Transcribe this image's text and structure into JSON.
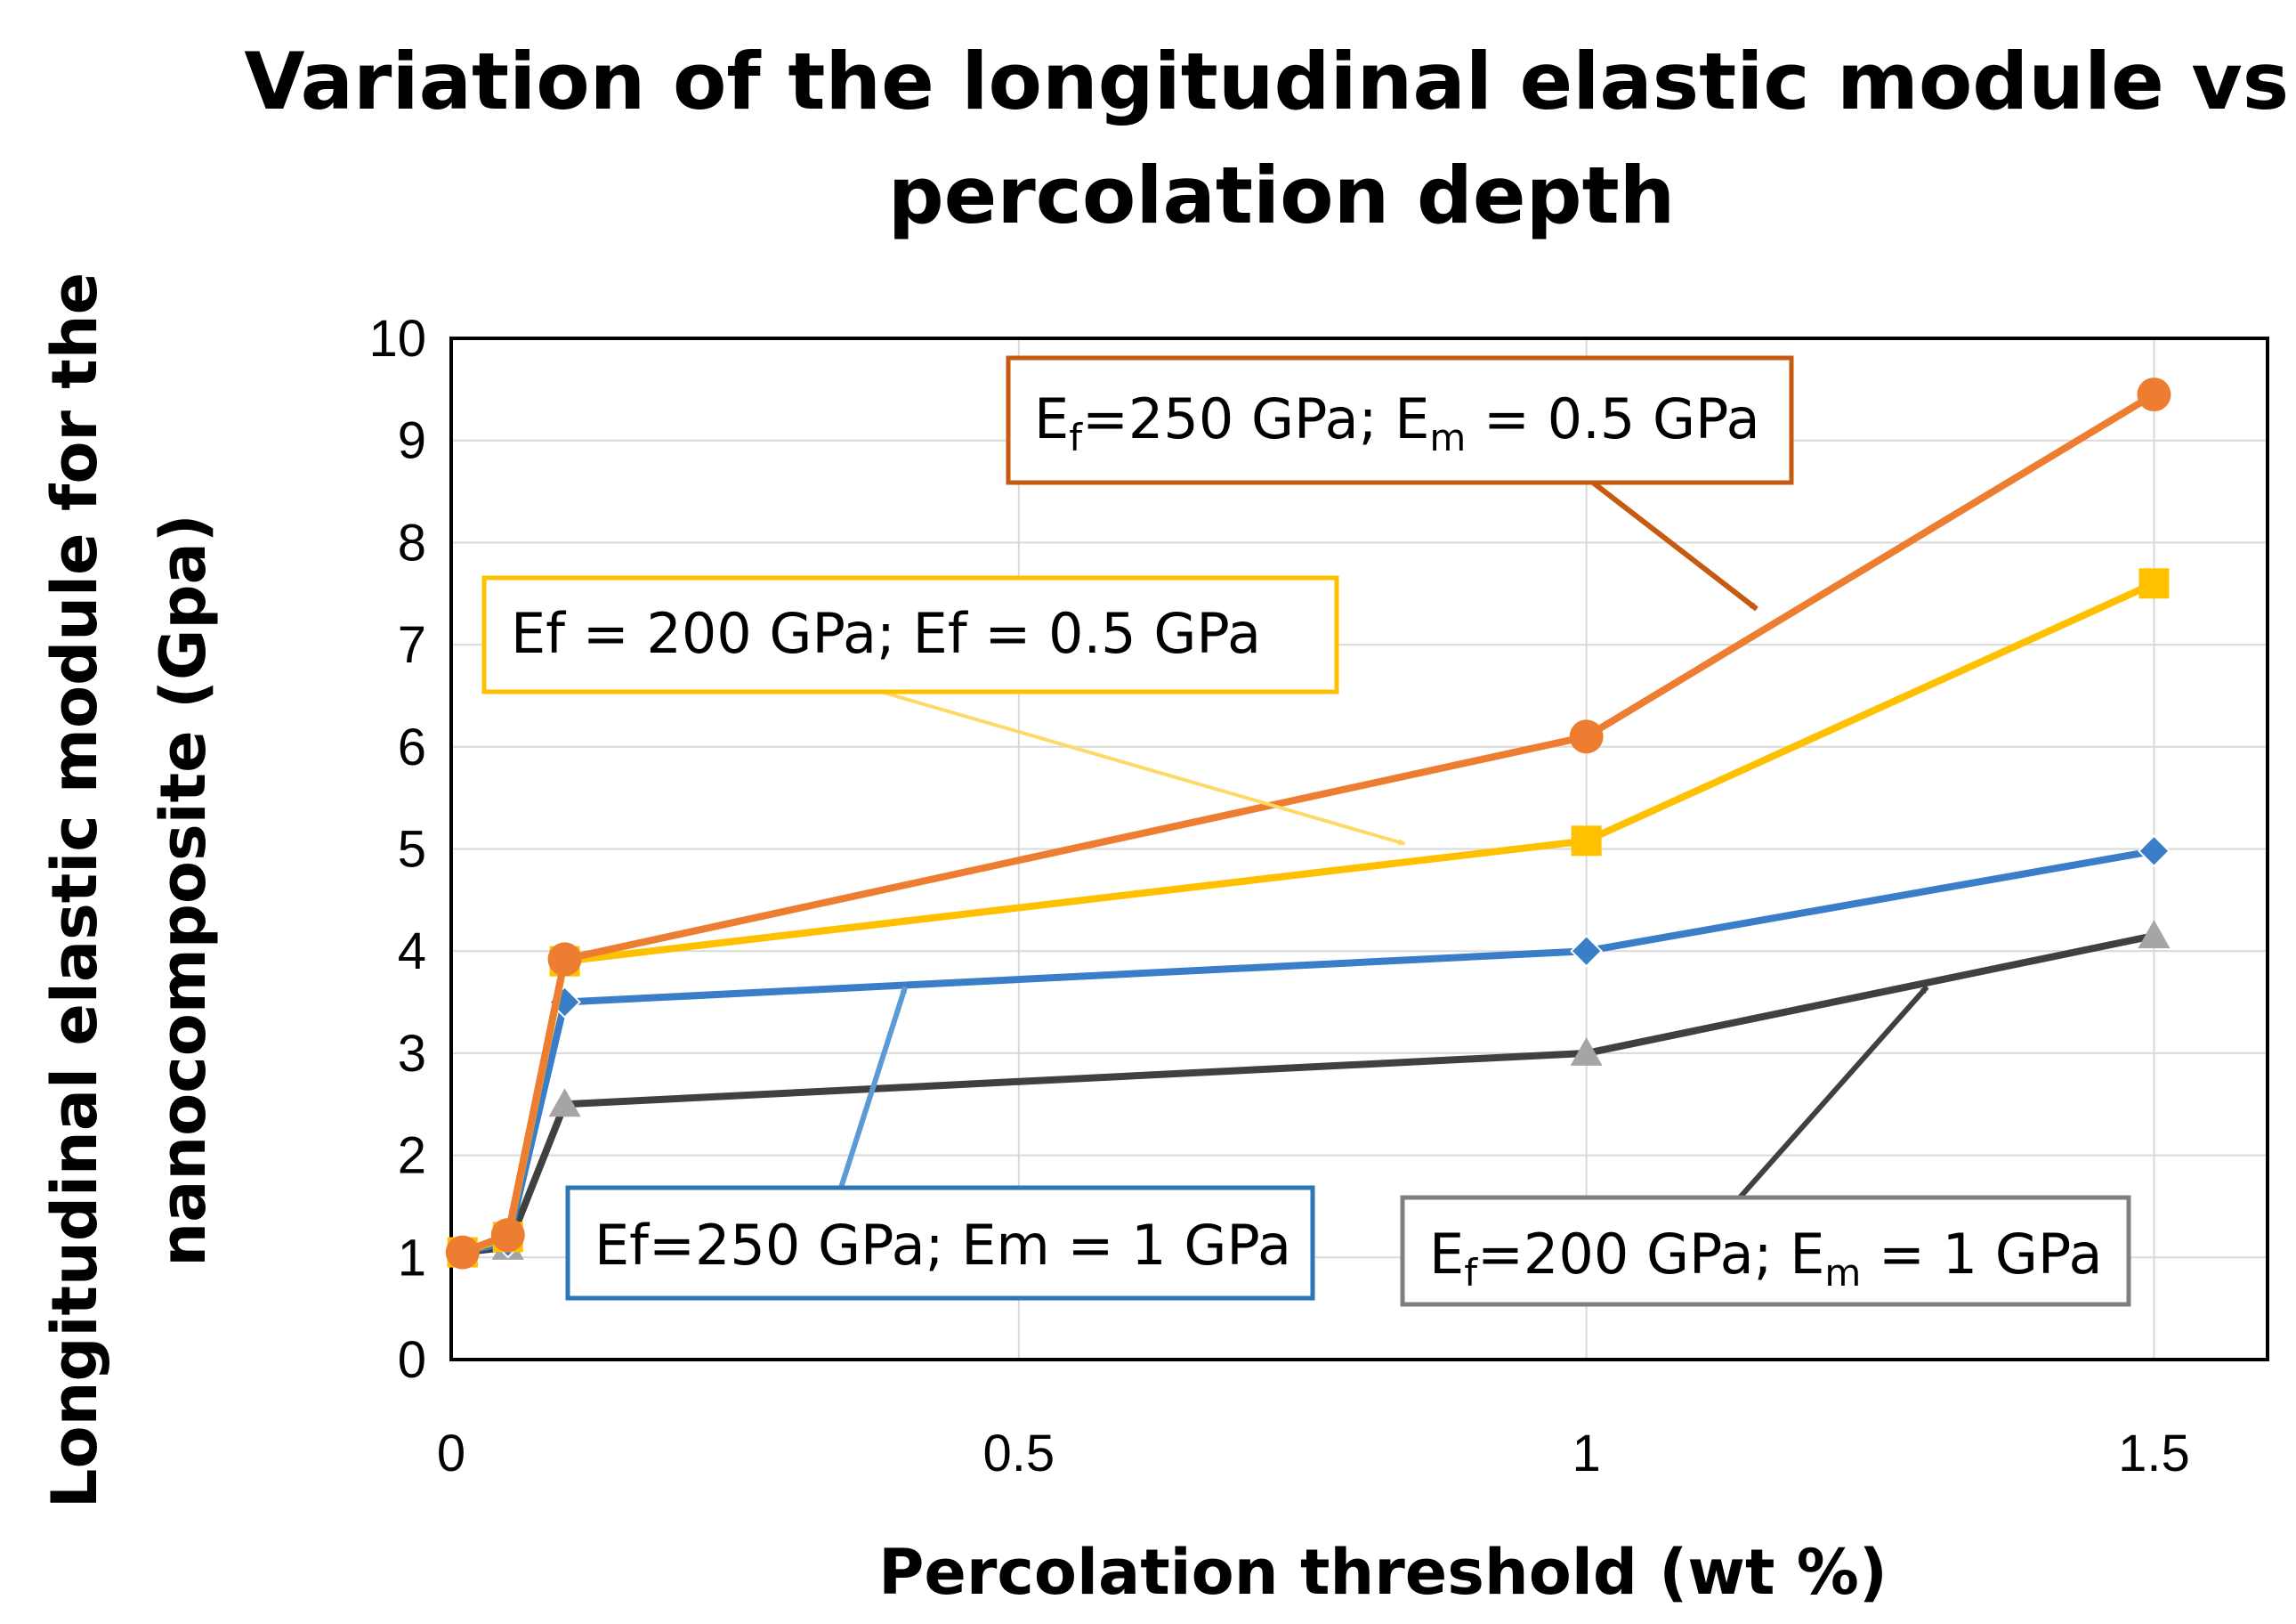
{
  "chart_data": {
    "type": "line",
    "title_lines": [
      "Variation of the longitudinal elastic module vs.",
      "percolation depth"
    ],
    "xlabel": "Percolation threshold (wt %)",
    "ylabel_lines": [
      "Longitudinal elastic module for the",
      "nanocomposite (Gpa)"
    ],
    "xlim": [
      0,
      1.6
    ],
    "ylim": [
      0,
      10
    ],
    "xticks": [
      0,
      0.5,
      1,
      1.5
    ],
    "xtick_labels": [
      "0",
      "0.5",
      "1",
      "1.5"
    ],
    "yticks": [
      0,
      1,
      2,
      3,
      4,
      5,
      6,
      7,
      8,
      9,
      10
    ],
    "ytick_labels": [
      "0",
      "1",
      "2",
      "3",
      "4",
      "5",
      "6",
      "7",
      "8",
      "9",
      "10"
    ],
    "grid": true,
    "x": [
      0.01,
      0.05,
      0.1,
      1,
      1.5
    ],
    "series": [
      {
        "name": "Ef=250 GPa; Em = 1 GPa",
        "marker": "diamond",
        "color": "#3a7dc9",
        "values": [
          1.05,
          1.15,
          3.5,
          4.0,
          4.98
        ]
      },
      {
        "name": "Ef=200 GPa; Em = 1 GPa",
        "marker": "triangle",
        "color": "#404040",
        "values": [
          1.05,
          1.1,
          2.5,
          3.0,
          4.15
        ]
      },
      {
        "name": "Ef = 200 GPa; Ef = 0.5 GPa",
        "marker": "square",
        "color": "#ffc000",
        "values": [
          1.05,
          1.2,
          3.9,
          5.08,
          7.6
        ]
      },
      {
        "name": "Ef=250 GPa; Em = 0.5 GPa",
        "marker": "circle",
        "color": "#ed7d31",
        "values": [
          1.05,
          1.22,
          3.92,
          6.1,
          9.45
        ]
      }
    ],
    "callouts": [
      {
        "series": 3,
        "text_parts": [
          "E",
          "f",
          "=250 GPa; E",
          "m",
          " = 0.5 GPa"
        ],
        "box_color": "#c55a11",
        "arrow_color": "#c55a11",
        "point_to": [
          1.15,
          7.35
        ]
      },
      {
        "series": 2,
        "text_parts": [
          "Ef = 200 GPa; Ef = 0.5 GPa"
        ],
        "box_color": "#ffc000",
        "arrow_color": "#ffd966",
        "point_to": [
          0.84,
          5.05
        ]
      },
      {
        "series": 0,
        "text_parts": [
          "Ef=250 GPa; Em = 1 GPa"
        ],
        "box_color": "#2e75b6",
        "arrow_color": "#5b9bd5",
        "point_to": [
          0.4,
          3.65
        ]
      },
      {
        "series": 1,
        "text_parts": [
          "E",
          "f",
          "=200 GPa; E",
          "m",
          " = 1 GPa"
        ],
        "box_color": "#7f7f7f",
        "arrow_color": "#404040",
        "point_to": [
          1.3,
          3.65
        ]
      }
    ]
  }
}
